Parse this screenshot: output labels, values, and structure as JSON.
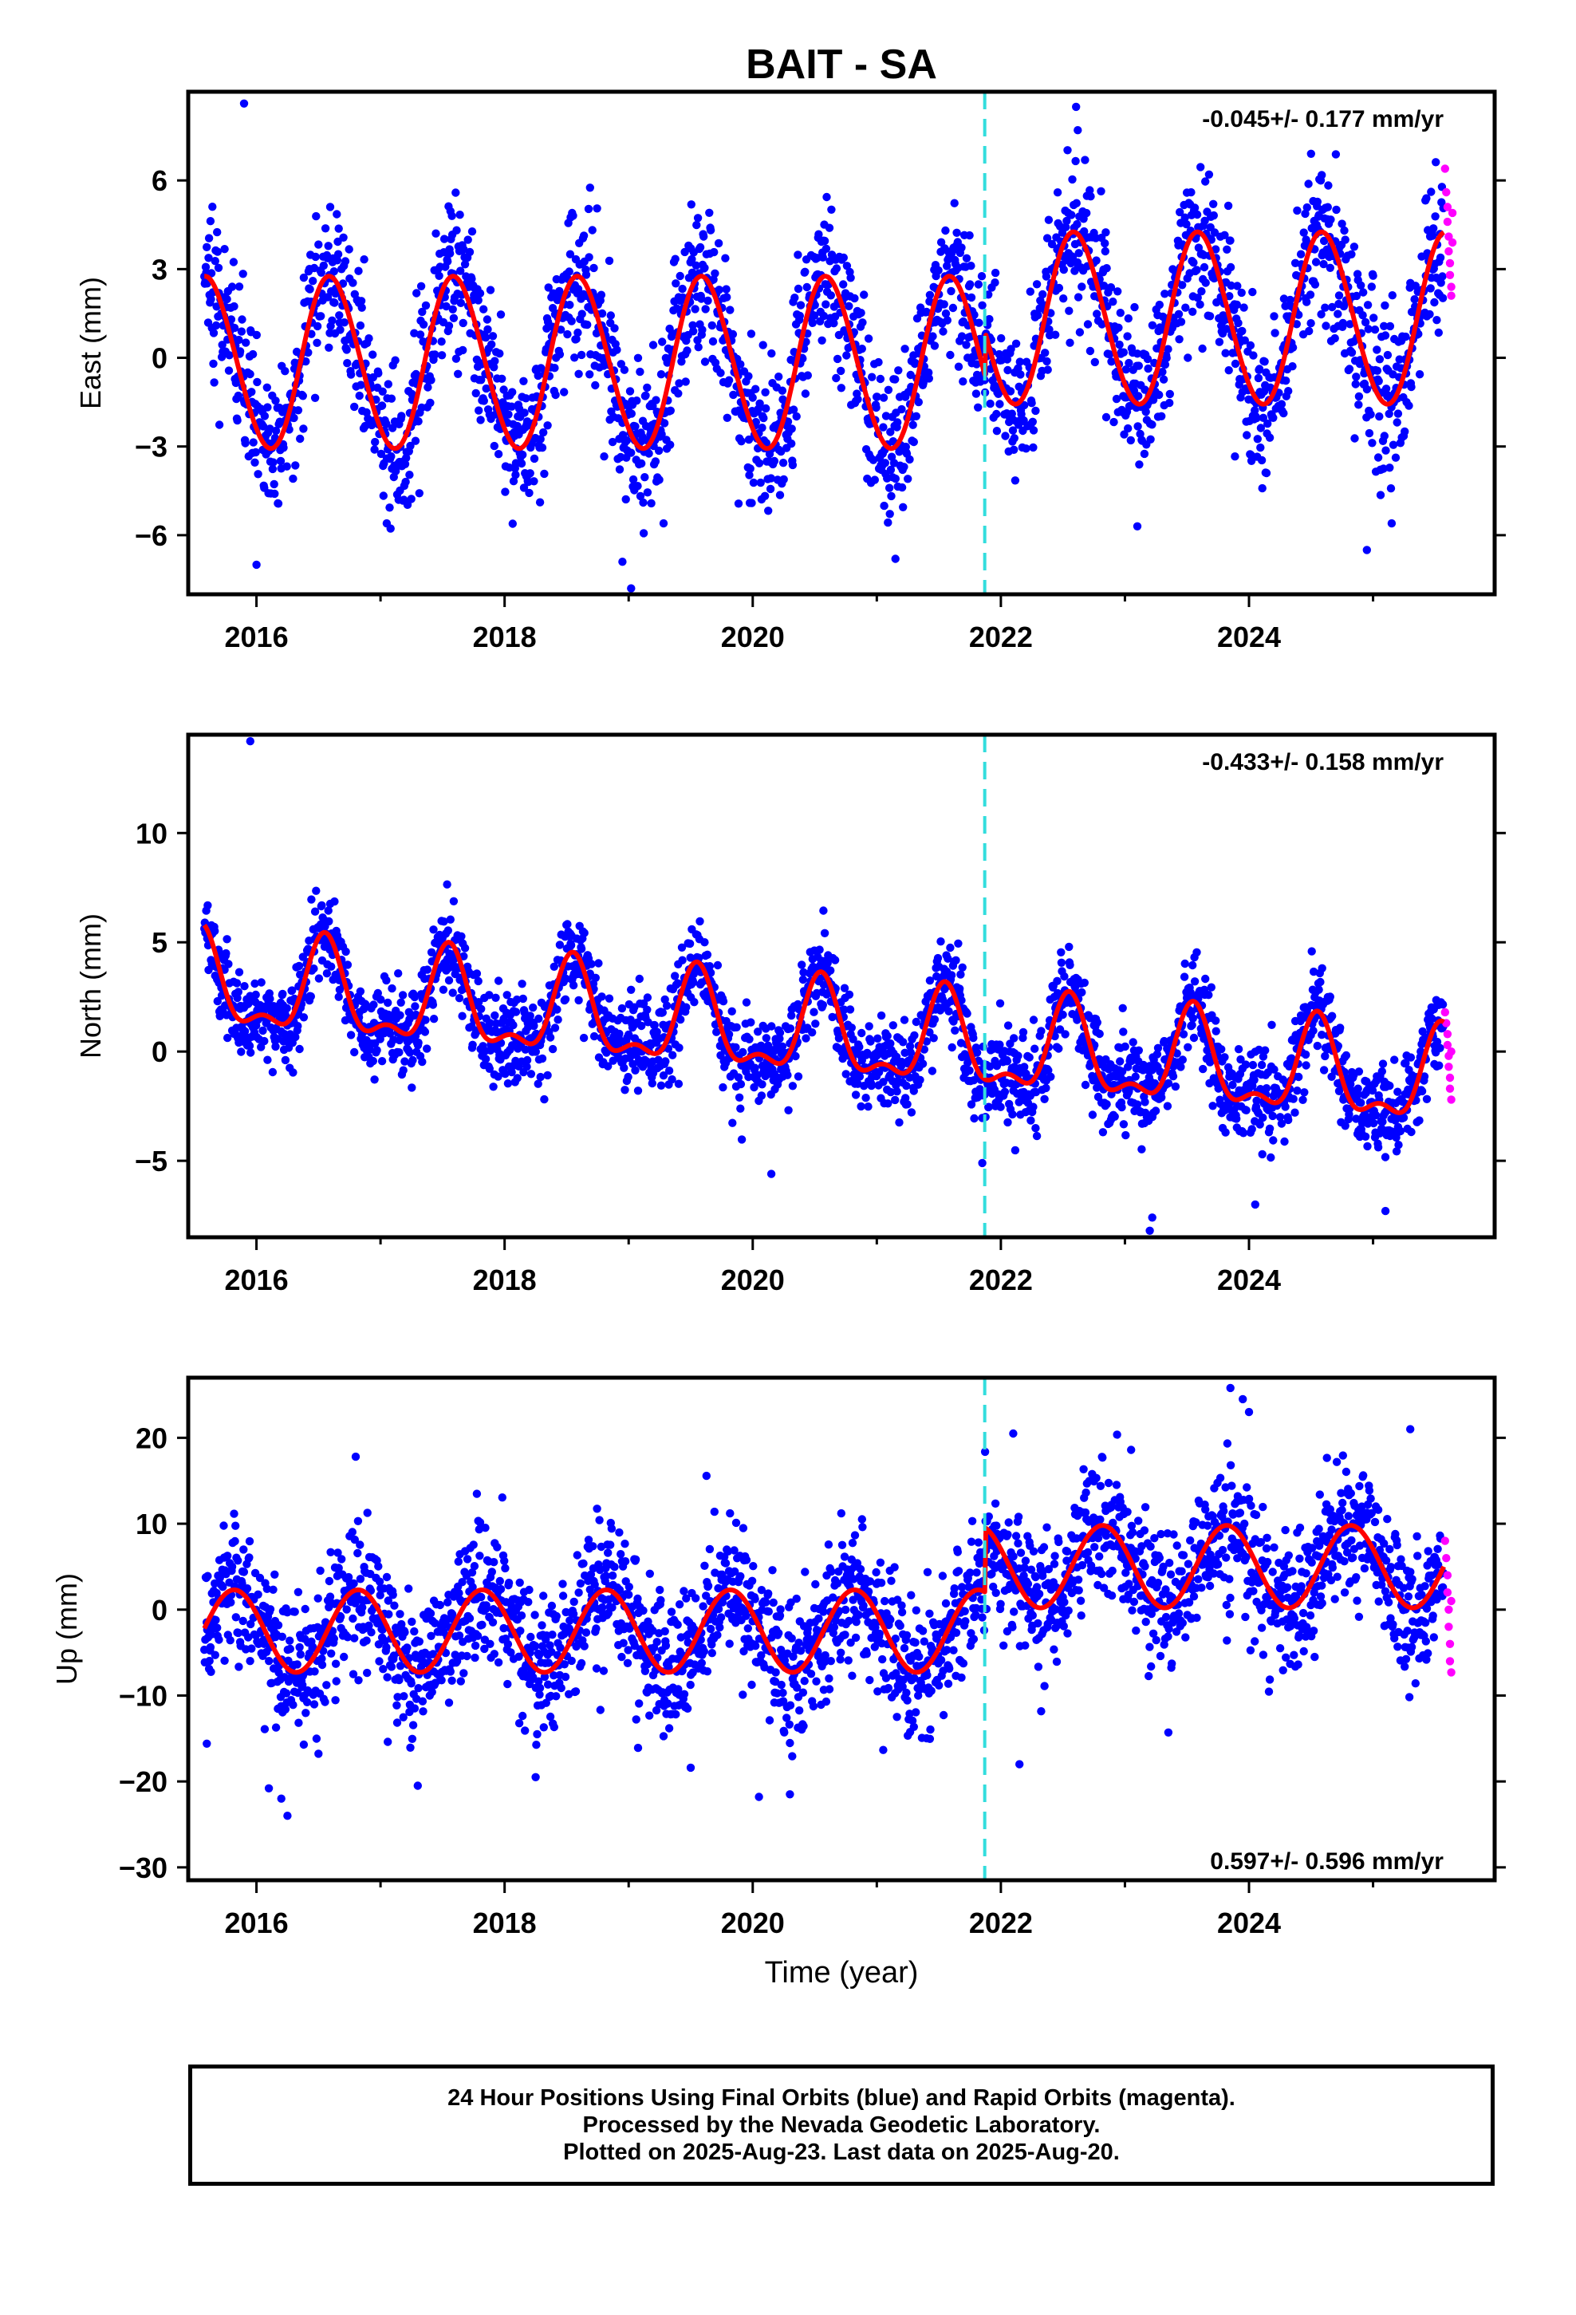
{
  "title": "BAIT - SA",
  "footer": {
    "line1": "24 Hour Positions Using Final Orbits (blue) and Rapid Orbits (magenta).",
    "line2": "Processed by the Nevada Geodetic Laboratory.",
    "line3": "Plotted on 2025-Aug-23. Last data on 2025-Aug-20."
  },
  "chart_data": [
    {
      "type": "scatter",
      "name": "east",
      "ylabel": "East (mm)",
      "xlabel": "",
      "rate_label": "-0.045+/- 0.177 mm/yr",
      "rate_position": "top-right",
      "xlim": [
        2015.45,
        2025.98
      ],
      "ylim": [
        -8,
        9
      ],
      "xticks": [
        2016,
        2018,
        2020,
        2022,
        2024
      ],
      "yticks": [
        -6,
        -3,
        0,
        3,
        6
      ],
      "equipment_change_x": 2021.87,
      "colors": {
        "final": "#0000ff",
        "rapid": "#ff00ff",
        "model": "#ff0000",
        "break": "#33dddd"
      },
      "model": {
        "offset": -0.2,
        "annual_amp": 2.9,
        "peak_year": 0.6,
        "semiannual_amp": 0.15,
        "step_year": 2021.87,
        "step": 1.5
      },
      "scatter_sigma": 1.3,
      "outliers": [
        [
          2015.9,
          8.6
        ],
        [
          2019.02,
          -7.8
        ],
        [
          2018.95,
          -6.9
        ],
        [
          2022.62,
          7.7
        ],
        [
          2024.5,
          6.9
        ],
        [
          2024.95,
          -6.5
        ],
        [
          2016.0,
          -7.0
        ],
        [
          2021.15,
          -6.8
        ],
        [
          2017.05,
          -5.6
        ],
        [
          2023.1,
          -5.7
        ],
        [
          2025.15,
          -5.6
        ]
      ],
      "rapid_points": [
        [
          2025.58,
          6.4
        ],
        [
          2025.59,
          5.6
        ],
        [
          2025.6,
          5.1
        ],
        [
          2025.6,
          4.6
        ],
        [
          2025.61,
          4.1
        ],
        [
          2025.61,
          3.6
        ],
        [
          2025.62,
          3.2
        ],
        [
          2025.62,
          2.8
        ],
        [
          2025.63,
          2.4
        ],
        [
          2025.63,
          2.1
        ],
        [
          2025.64,
          4.9
        ],
        [
          2025.64,
          3.9
        ]
      ]
    },
    {
      "type": "scatter",
      "name": "north",
      "ylabel": "North (mm)",
      "xlabel": "",
      "rate_label": "-0.433+/- 0.158 mm/yr",
      "rate_position": "top-right",
      "xlim": [
        2015.45,
        2025.98
      ],
      "ylim": [
        -8.5,
        14.5
      ],
      "xticks": [
        2016,
        2018,
        2020,
        2022,
        2024
      ],
      "yticks": [
        -5,
        0,
        5,
        10
      ],
      "equipment_change_x": 2021.87,
      "colors": {
        "final": "#0000ff",
        "rapid": "#ff00ff",
        "model": "#ff0000",
        "break": "#33dddd"
      },
      "model": {
        "offset": 1.0,
        "trend": -0.45,
        "annual_amp": 2.0,
        "peak_year": 0.55,
        "semiannual_amp": 0.9,
        "semiannual_peak": 0.05,
        "step_year": 2021.87,
        "step": 0.0
      },
      "scatter_sigma": 1.05,
      "outliers": [
        [
          2015.95,
          14.2
        ],
        [
          2023.2,
          -8.2
        ],
        [
          2023.22,
          -7.6
        ],
        [
          2024.05,
          -7.0
        ],
        [
          2025.1,
          -7.3
        ],
        [
          2020.15,
          -5.6
        ],
        [
          2021.85,
          -5.1
        ]
      ],
      "rapid_points": [
        [
          2025.58,
          1.8
        ],
        [
          2025.59,
          1.3
        ],
        [
          2025.6,
          0.8
        ],
        [
          2025.6,
          0.3
        ],
        [
          2025.61,
          -0.2
        ],
        [
          2025.61,
          -0.7
        ],
        [
          2025.62,
          -1.2
        ],
        [
          2025.62,
          -1.7
        ],
        [
          2025.63,
          -2.2
        ],
        [
          2025.63,
          0.0
        ]
      ]
    },
    {
      "type": "scatter",
      "name": "up",
      "ylabel": "Up (mm)",
      "xlabel": "Time (year)",
      "rate_label": "0.597+/- 0.596 mm/yr",
      "rate_position": "bottom-right",
      "xlim": [
        2015.45,
        2025.98
      ],
      "ylim": [
        -31.5,
        27
      ],
      "xticks": [
        2016,
        2018,
        2020,
        2022,
        2024
      ],
      "yticks": [
        -30,
        -20,
        -10,
        0,
        10,
        20
      ],
      "equipment_change_x": 2021.87,
      "colors": {
        "final": "#0000ff",
        "rapid": "#ff00ff",
        "model": "#ff0000",
        "break": "#33dddd"
      },
      "model": {
        "offset": -2.5,
        "trend": 0.0,
        "annual_amp": 4.8,
        "peak_year": 0.82,
        "semiannual_amp": 0.0,
        "step_year": 2021.87,
        "step": 7.5
      },
      "scatter_sigma": 4.0,
      "outliers": [
        [
          2015.6,
          -15.6
        ],
        [
          2016.25,
          -24.0
        ],
        [
          2016.2,
          -22.0
        ],
        [
          2016.1,
          -20.8
        ],
        [
          2016.8,
          17.8
        ],
        [
          2017.3,
          -20.5
        ],
        [
          2018.25,
          -19.5
        ],
        [
          2019.5,
          -18.4
        ],
        [
          2020.3,
          -21.5
        ],
        [
          2020.05,
          -21.8
        ],
        [
          2022.1,
          20.5
        ],
        [
          2022.15,
          -18.0
        ],
        [
          2023.35,
          -14.3
        ],
        [
          2023.85,
          25.8
        ],
        [
          2023.95,
          24.5
        ],
        [
          2024.0,
          23.0
        ],
        [
          2025.3,
          21.0
        ],
        [
          2023.05,
          18.6
        ]
      ],
      "rapid_points": [
        [
          2025.58,
          8.0
        ],
        [
          2025.59,
          6.0
        ],
        [
          2025.6,
          4.0
        ],
        [
          2025.6,
          2.0
        ],
        [
          2025.61,
          0.0
        ],
        [
          2025.61,
          -2.0
        ],
        [
          2025.62,
          -4.0
        ],
        [
          2025.62,
          -6.0
        ],
        [
          2025.63,
          -7.3
        ],
        [
          2025.63,
          1.0
        ]
      ]
    }
  ]
}
